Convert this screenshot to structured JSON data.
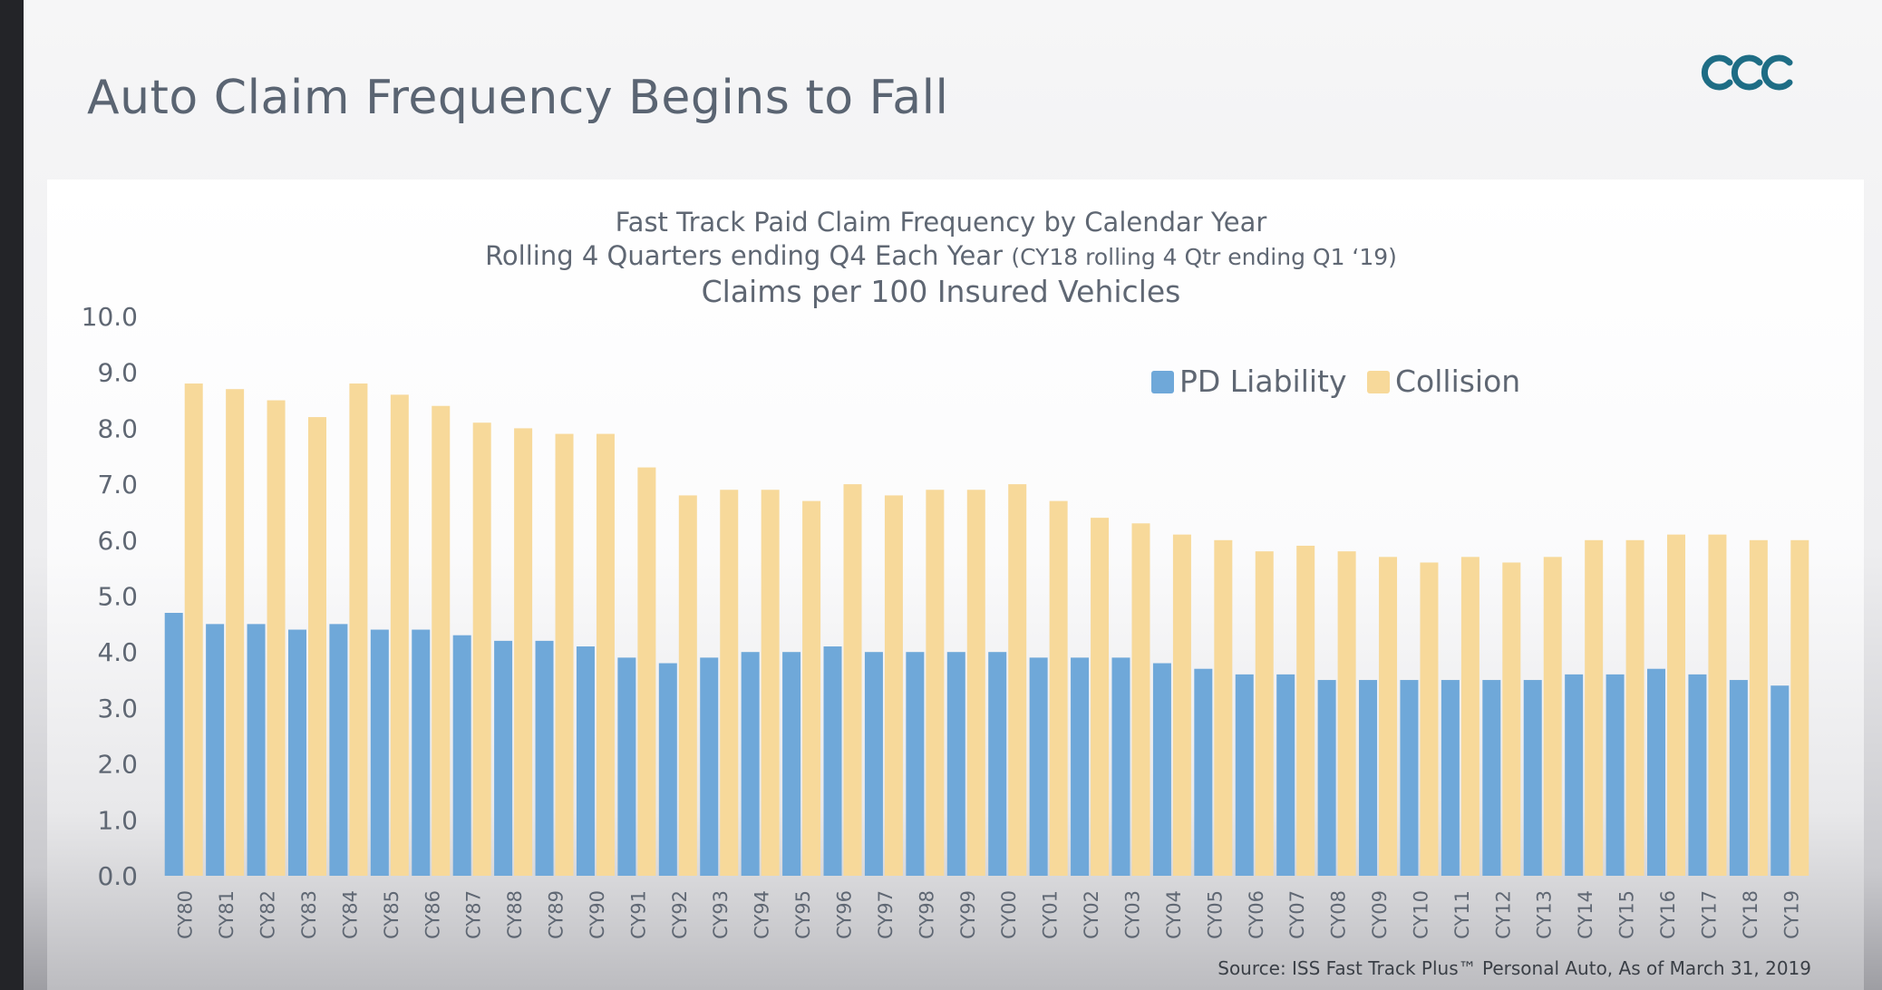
{
  "slide": {
    "title": "Auto Claim Frequency Begins to Fall",
    "logo_icon": "ccc-logo-icon",
    "source": "Source:  ISS Fast Track Plus™ Personal Auto, As of March 31, 2019"
  },
  "chart_data": {
    "type": "bar",
    "title": "Fast Track Paid Claim Frequency by Calendar Year",
    "subtitle_main": "Rolling 4 Quarters ending Q4 Each Year",
    "subtitle_note": "(CY18 rolling 4 Qtr ending Q1 ‘19)",
    "subtitle_units": "Claims per 100 Insured Vehicles",
    "ylim": [
      0,
      10
    ],
    "yticks": [
      "0.0",
      "1.0",
      "2.0",
      "3.0",
      "4.0",
      "5.0",
      "6.0",
      "7.0",
      "8.0",
      "9.0",
      "10.0"
    ],
    "grid": false,
    "legend_position": "top-right",
    "categories": [
      "CY80",
      "CY81",
      "CY82",
      "CY83",
      "CY84",
      "CY85",
      "CY86",
      "CY87",
      "CY88",
      "CY89",
      "CY90",
      "CY91",
      "CY92",
      "CY93",
      "CY94",
      "CY95",
      "CY96",
      "CY97",
      "CY98",
      "CY99",
      "CY00",
      "CY01",
      "CY02",
      "CY03",
      "CY04",
      "CY05",
      "CY06",
      "CY07",
      "CY08",
      "CY09",
      "CY10",
      "CY11",
      "CY12",
      "CY13",
      "CY14",
      "CY15",
      "CY16",
      "CY17",
      "CY18",
      "CY19"
    ],
    "series": [
      {
        "name": "PD Liability",
        "color": "#6fa8d9",
        "values": [
          4.7,
          4.5,
          4.5,
          4.4,
          4.5,
          4.4,
          4.4,
          4.3,
          4.2,
          4.2,
          4.1,
          3.9,
          3.8,
          3.9,
          4.0,
          4.0,
          4.1,
          4.0,
          4.0,
          4.0,
          4.0,
          3.9,
          3.9,
          3.9,
          3.8,
          3.7,
          3.6,
          3.6,
          3.5,
          3.5,
          3.5,
          3.5,
          3.5,
          3.5,
          3.6,
          3.6,
          3.7,
          3.6,
          3.5,
          3.4
        ]
      },
      {
        "name": "Collision",
        "color": "#f7d99a",
        "values": [
          8.8,
          8.7,
          8.5,
          8.2,
          8.8,
          8.6,
          8.4,
          8.1,
          8.0,
          7.9,
          7.9,
          7.3,
          6.8,
          6.9,
          6.9,
          6.7,
          7.0,
          6.8,
          6.9,
          6.9,
          7.0,
          6.7,
          6.4,
          6.3,
          6.1,
          6.0,
          5.8,
          5.9,
          5.8,
          5.7,
          5.6,
          5.7,
          5.6,
          5.7,
          6.0,
          6.0,
          6.1,
          6.1,
          6.0,
          6.0
        ]
      }
    ]
  }
}
